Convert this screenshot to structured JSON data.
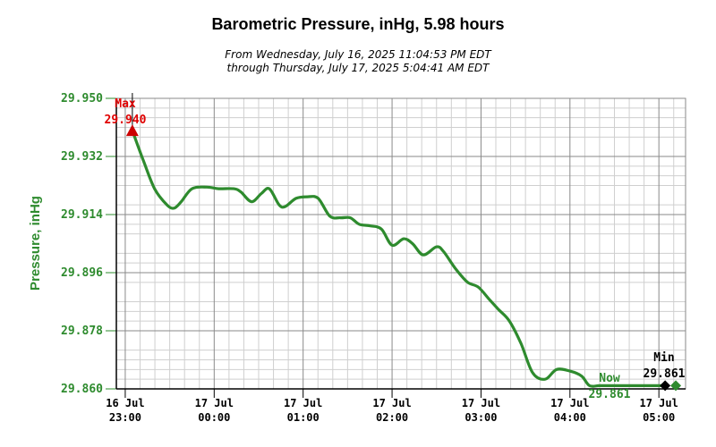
{
  "chart_data": {
    "type": "line",
    "title": "Barometric Pressure, inHg, 5.98 hours",
    "subtitle_line1": "From Wednesday, July 16, 2025 11:04:53 PM EDT",
    "subtitle_line2": "through Thursday, July 17, 2025 5:04:41 AM EDT",
    "ylabel": "Pressure, inHg",
    "xlabel": "",
    "ylim": [
      29.86,
      29.95
    ],
    "y_ticks": [
      "29.950",
      "29.932",
      "29.914",
      "29.896",
      "29.878",
      "29.860"
    ],
    "x_range_hours": [
      22.9,
      29.3
    ],
    "x_ticks": [
      {
        "hour": 23,
        "line1": "16 Jul",
        "line2": "23:00"
      },
      {
        "hour": 24,
        "line1": "17 Jul",
        "line2": "00:00"
      },
      {
        "hour": 25,
        "line1": "17 Jul",
        "line2": "01:00"
      },
      {
        "hour": 26,
        "line1": "17 Jul",
        "line2": "02:00"
      },
      {
        "hour": 27,
        "line1": "17 Jul",
        "line2": "03:00"
      },
      {
        "hour": 28,
        "line1": "17 Jul",
        "line2": "04:00"
      },
      {
        "hour": 29,
        "line1": "17 Jul",
        "line2": "05:00"
      }
    ],
    "grid": true,
    "series": [
      {
        "name": "",
        "color": "#2e8b2e",
        "x": [
          23.08,
          23.2,
          23.33,
          23.47,
          23.55,
          23.63,
          23.75,
          23.92,
          24.05,
          24.22,
          24.3,
          24.42,
          24.53,
          24.62,
          24.73,
          24.8,
          24.92,
          25.05,
          25.17,
          25.3,
          25.42,
          25.53,
          25.63,
          25.75,
          25.88,
          26.0,
          26.13,
          26.23,
          26.35,
          26.5,
          26.58,
          26.72,
          26.85,
          26.97,
          27.1,
          27.2,
          27.32,
          27.45,
          27.58,
          27.72,
          27.85,
          28.0,
          28.13,
          28.22,
          28.33,
          28.47,
          28.58,
          28.67,
          28.78,
          28.88,
          28.97,
          29.07
        ],
        "values": [
          29.94,
          29.931,
          29.922,
          29.917,
          29.916,
          29.918,
          29.922,
          29.9225,
          29.922,
          29.922,
          29.921,
          29.918,
          29.9205,
          29.922,
          29.917,
          29.9165,
          29.919,
          29.9195,
          29.919,
          29.9135,
          29.913,
          29.913,
          29.911,
          29.9105,
          29.9095,
          29.9045,
          29.9065,
          29.905,
          29.9015,
          29.904,
          29.9025,
          29.897,
          29.893,
          29.8915,
          29.8875,
          29.8845,
          29.881,
          29.874,
          29.865,
          29.863,
          29.866,
          29.8655,
          29.864,
          29.861,
          29.861,
          29.861,
          29.861,
          29.861,
          29.861,
          29.861,
          29.861,
          29.861
        ]
      }
    ],
    "annotations": {
      "max": {
        "label": "Max",
        "value_text": "29.940",
        "hour": 23.08,
        "value": 29.94,
        "color": "#cc0000"
      },
      "min": {
        "label": "Min",
        "value_text": "29.861",
        "hour": 29.07,
        "value": 29.861,
        "color": "#000000"
      },
      "now": {
        "label": "Now",
        "value_text": "29.861",
        "hour": 29.19,
        "value": 29.861,
        "color": "#2e8b2e"
      }
    }
  }
}
